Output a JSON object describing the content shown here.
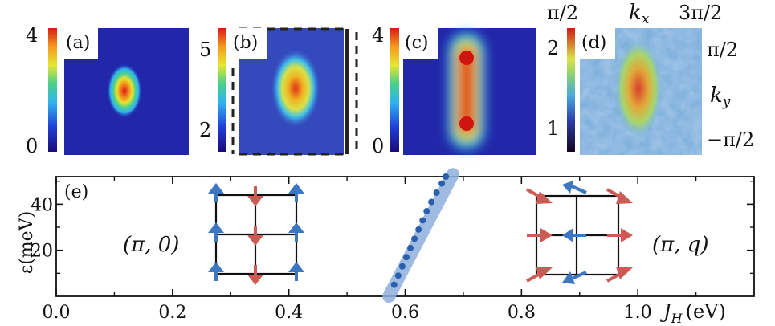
{
  "panels": {
    "a": {
      "label": "(a)",
      "cbar_ticks": [
        "4",
        "0"
      ]
    },
    "b": {
      "label": "(b)",
      "cbar_ticks": [
        "5",
        "2"
      ]
    },
    "c": {
      "label": "(c)",
      "cbar_ticks": [
        "4",
        "0"
      ]
    },
    "d": {
      "label": "(d)",
      "cbar_ticks": [
        "2",
        "1"
      ],
      "kx_left": "π/2",
      "kx_label": "k",
      "kx_sub": "x",
      "kx_right": "3π/2",
      "ky_top": "π/2",
      "ky_label": "k",
      "ky_sub": "y",
      "ky_bottom": "−π/2"
    },
    "e": {
      "label": "(e)"
    }
  },
  "colormap": [
    "#1a0a7a",
    "#1f3fd6",
    "#2fb4f0",
    "#49d08a",
    "#e6e630",
    "#f59a1e",
    "#d81a14"
  ],
  "chart_data": {
    "type": "scatter",
    "xlabel": "J",
    "xlabel_sub": "H",
    "xlabel_unit": "(eV)",
    "ylabel": "ε(meV)",
    "xlim": [
      0.0,
      1.2
    ],
    "ylim": [
      0,
      52
    ],
    "xticks": [
      "0.0",
      "0.2",
      "0.4",
      "0.6",
      "0.8",
      "1.0"
    ],
    "xtick_values": [
      0.0,
      0.2,
      0.4,
      0.6,
      0.8,
      1.0
    ],
    "yticks": [
      "20",
      "40"
    ],
    "ytick_values": [
      20,
      40
    ],
    "series": [
      {
        "points": [
          [
            0.581,
            5
          ],
          [
            0.588,
            9
          ],
          [
            0.595,
            13
          ],
          [
            0.602,
            17
          ],
          [
            0.609,
            21
          ],
          [
            0.616,
            25
          ],
          [
            0.623,
            29
          ],
          [
            0.63,
            33
          ],
          [
            0.637,
            37
          ],
          [
            0.645,
            41
          ],
          [
            0.654,
            45
          ],
          [
            0.663,
            49
          ],
          [
            0.67,
            52
          ]
        ],
        "color": "#2a5fb0"
      }
    ],
    "band": {
      "from": [
        0.572,
        0
      ],
      "to": [
        0.682,
        53
      ],
      "color": "#8fb0dc"
    },
    "annotations": [
      {
        "text": "(π, 0)"
      },
      {
        "text": "(π, q)"
      }
    ],
    "tick_label_bottom_right": "1.0"
  }
}
